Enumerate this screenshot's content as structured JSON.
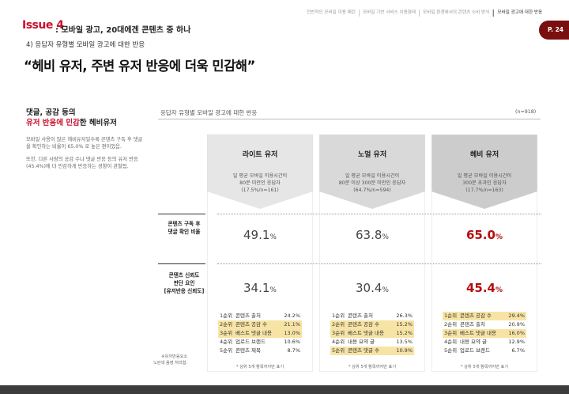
{
  "nav": [
    {
      "label": "전반적인 모바일 이용 패턴",
      "active": false
    },
    {
      "label": "모바일 기반 서비스 이용형태",
      "active": false
    },
    {
      "label": "모바일 환경에서의 콘텐츠 소비 방식",
      "active": false
    },
    {
      "label": "모바일 광고에 대한 반응",
      "active": true
    }
  ],
  "page_number": "P. 24",
  "issue": {
    "tag": "Issue 4",
    "title": ": 모바일 광고, 20대에겐 콘텐츠 중 하나"
  },
  "subhead": "4) 응답자 유형별 모바일 광고에 대한 반응",
  "quote": "“헤비 유저, 주변 유저 반응에 더욱 민감해”",
  "left": {
    "head_line1": "댓글, 공감 등의",
    "head_red": "유저 반응에 민감",
    "head_tail": "한 헤비유저",
    "para1": "모바일 사용이 많은 헤비유저일수록 콘텐츠 구독 후 댓글을 확인하는 비율이 65.0% 로 높은 편이었음.",
    "para2": "또한, 다른 사람의 공감 수나 댓글 반응 등의 유저 반응(45.4%)에 더 민감하게 반응하는 경향이 관찰됨."
  },
  "footnote_line1": "※유저반응요소",
  "footnote_line2": "노란색 음영 처리함.",
  "table": {
    "title": "응답자 유형별 모바일 광고에 대한 반응",
    "n": "(n=918)",
    "row1_line1": "콘텐츠 구독 후",
    "row1_line2": "댓글 확인 비율",
    "row2_line1": "콘텐츠 신뢰도",
    "row2_line2": "판단 요인",
    "row2_line3": "[유저반응 신뢰도]",
    "bottom_note": "* 상위 5개 항목까지만 표기"
  },
  "columns": [
    {
      "name": "라이트 유저",
      "desc1": "일 평균 모바일 이용시간이",
      "desc2": "80분 미만인 응답자",
      "desc3": "(17.5%/n=161)",
      "v1": "49.1",
      "v2": "34.1",
      "unit": "%",
      "color": "#e6e6e6",
      "highlight_value": false,
      "ranks": [
        {
          "rank": "1순위",
          "item": "콘텐츠 출처",
          "pct": "24.2%",
          "hl": false
        },
        {
          "rank": "2순위",
          "item": "콘텐츠 공감 수",
          "pct": "21.1%",
          "hl": true
        },
        {
          "rank": "3순위",
          "item": "베스트 댓글 내용",
          "pct": "13.0%",
          "hl": true
        },
        {
          "rank": "4순위",
          "item": "업로드 브랜드",
          "pct": "10.6%",
          "hl": false
        },
        {
          "rank": "5순위",
          "item": "콘텐츠 제목",
          "pct": "8.7%",
          "hl": false
        }
      ]
    },
    {
      "name": "노멀 유저",
      "desc1": "일 평균 모바일 이용시간이",
      "desc2": "80분 이상 300분 미만인 응답자",
      "desc3": "(64.7%/n=594)",
      "v1": "63.8",
      "v2": "30.4",
      "unit": "%",
      "color": "#d9d9d9",
      "highlight_value": false,
      "ranks": [
        {
          "rank": "1순위",
          "item": "콘텐츠 출처",
          "pct": "26.3%",
          "hl": false
        },
        {
          "rank": "2순위",
          "item": "콘텐츠 공감 수",
          "pct": "15.2%",
          "hl": true
        },
        {
          "rank": "3순위",
          "item": "베스트 댓글 내용",
          "pct": "15.2%",
          "hl": true
        },
        {
          "rank": "4순위",
          "item": "내용 요약 글",
          "pct": "13.5%",
          "hl": false
        },
        {
          "rank": "5순위",
          "item": "콘텐츠 댓글 수",
          "pct": "10.9%",
          "hl": true
        }
      ]
    },
    {
      "name": "헤비 유저",
      "desc1": "일 평균 모바일 이용시간이",
      "desc2": "300분 초과인 응답자",
      "desc3": "(17.7%/n=163)",
      "v1": "65.0",
      "v2": "45.4",
      "unit": "%",
      "color": "#cccccc",
      "highlight_value": true,
      "ranks": [
        {
          "rank": "1순위",
          "item": "콘텐츠 공감 수",
          "pct": "29.4%",
          "hl": true
        },
        {
          "rank": "2순위",
          "item": "콘텐츠 출처",
          "pct": "20.9%",
          "hl": false
        },
        {
          "rank": "3순위",
          "item": "베스트 댓글 내용",
          "pct": "16.0%",
          "hl": true
        },
        {
          "rank": "4순위",
          "item": "내용 요약 글",
          "pct": "12.9%",
          "hl": false
        },
        {
          "rank": "5순위",
          "item": "업로드 브랜드",
          "pct": "6.7%",
          "hl": false
        }
      ]
    }
  ]
}
